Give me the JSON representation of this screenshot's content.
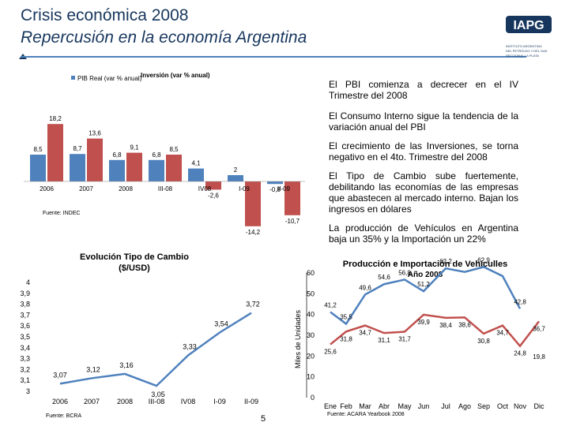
{
  "header": {
    "title": "Crisis económica 2008",
    "subtitle": "Repercusión en la economía Argentina"
  },
  "logo": {
    "text": "IAPG",
    "lines": [
      "INSTITUTO ARGENTINO",
      "DEL PETRÓLEO Y DEL GAS",
      "SECCIONAL LA PLATA"
    ]
  },
  "notes": [
    "El PBI comienza a decrecer en el IV Trimestre del 2008",
    "El Consumo Interno sigue la tendencia de la variación anual del PBI",
    "El crecimiento de las Inversiones, se torna negativo en el 4to. Trimestre del 2008",
    "El Tipo de Cambio sube fuertemente, debilitando las economías de las empresas que abastecen al mercado interno. Bajan los ingresos en dólares",
    "La producción de Vehículos en Argentina baja un 35% y la Importación un 22%"
  ],
  "page_number": "5",
  "chart_data": [
    {
      "type": "bar",
      "title": "PIB Real e Inversión (var % anual)",
      "legend": [
        "PIB Real (var % anual)",
        "Inversión (var % anual)"
      ],
      "categories": [
        "2006",
        "2007",
        "2008",
        "III-08",
        "IV08",
        "I-09",
        "II-09"
      ],
      "series": [
        {
          "name": "PIB Real (var % anual)",
          "values": [
            8.5,
            8.7,
            6.8,
            6.8,
            4.1,
            2,
            -0.8
          ],
          "labels": [
            "8,5",
            "8,7",
            "6,8",
            "6,8",
            "4,1",
            "2",
            "-0,8"
          ]
        },
        {
          "name": "Inversión (var % anual)",
          "values": [
            18.2,
            13.6,
            9.1,
            8.5,
            -2.6,
            -14.2,
            -10.7
          ],
          "labels": [
            "18,2",
            "13,6",
            "9,1",
            "8,5",
            "-2,6",
            "-14,2",
            "-10,7"
          ]
        }
      ],
      "source": "Fuente: INDEC"
    },
    {
      "type": "line",
      "title": "Evolución Tipo de Cambio ($/USD)",
      "categories": [
        "2006",
        "2007",
        "2008",
        "III-08",
        "IV08",
        "I-09",
        "II-09"
      ],
      "values": [
        3.07,
        3.12,
        3.16,
        3.05,
        3.33,
        3.54,
        3.72
      ],
      "labels": [
        "3,07",
        "3,12",
        "3,16",
        "3,05",
        "3,33",
        "3,54",
        "3,72"
      ],
      "ylim": [
        3,
        4
      ],
      "yticks": [
        "4",
        "3,9",
        "3,8",
        "3,7",
        "3,6",
        "3,5",
        "3,4",
        "3,3",
        "3,2",
        "3,1",
        "3"
      ],
      "source": "Fuente: BCRA"
    },
    {
      "type": "line",
      "title": "Producción e Importación de Vehículles Año 2008",
      "ylabel": "Miles de Unidades",
      "categories": [
        "Ene",
        "Feb",
        "Mar",
        "Abr",
        "May",
        "Jun",
        "Jul",
        "Ago",
        "Sep",
        "Oct",
        "Nov",
        "Dic"
      ],
      "ylim": [
        0,
        60
      ],
      "yticks": [
        "60",
        "50",
        "40",
        "30",
        "20",
        "10",
        "0"
      ],
      "series": [
        {
          "name": "Producción",
          "values": [
            41.2,
            35.5,
            49.6,
            54.6,
            56.8,
            51.2,
            62.2,
            60.5,
            62.9,
            58.5,
            42.8,
            null
          ],
          "labels": [
            "41,2",
            "35,5",
            "49,6",
            "54,6",
            "56,8",
            "51,2",
            "62,2",
            "",
            "62,9",
            "",
            "42,8",
            ""
          ]
        },
        {
          "name": "Importación",
          "values": [
            25.6,
            31.8,
            34.7,
            31.1,
            31.7,
            39.9,
            38.4,
            38.6,
            30.8,
            34.7,
            24.8,
            36.7
          ],
          "labels": [
            "25,6",
            "31,8",
            "34,7",
            "31,1",
            "31,7",
            "39,9",
            "38,4",
            "38,6",
            "30,8",
            "34,7",
            "24,8",
            "36,7"
          ]
        }
      ],
      "extra_label": "19,8",
      "source": "Fuente: ACARA Yearbook 2008"
    }
  ],
  "colors": {
    "pib": "#4f81bd",
    "inversion": "#c0504d",
    "title": "#17365d"
  }
}
